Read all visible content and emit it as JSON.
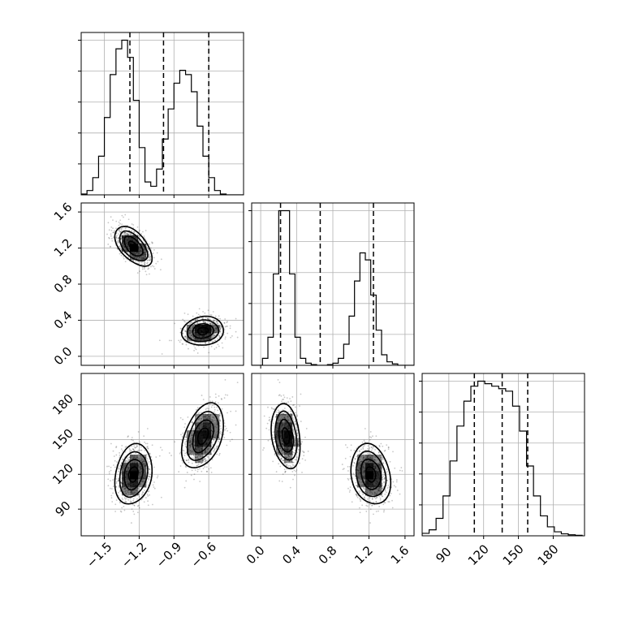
{
  "chart_data": {
    "type": "corner",
    "parameters": [
      {
        "label": "",
        "range": [
          -1.7,
          -0.3
        ],
        "ticks": [
          -1.5,
          -1.2,
          -0.9,
          -0.6
        ],
        "tick_labels": [
          "−1.5",
          "−1.2",
          "−0.9",
          "−0.6"
        ]
      },
      {
        "label": "",
        "range": [
          -0.1,
          1.7
        ],
        "ticks": [
          0.0,
          0.4,
          0.8,
          1.2,
          1.6
        ],
        "tick_labels": [
          "0.0",
          "0.4",
          "0.8",
          "1.2",
          "1.6"
        ]
      },
      {
        "label": "",
        "range": [
          67,
          207
        ],
        "ticks": [
          90,
          120,
          150,
          180
        ],
        "tick_labels": [
          "90",
          "120",
          "150",
          "180"
        ]
      }
    ],
    "modes": [
      {
        "weight": 0.5,
        "mean": [
          -1.25,
          1.22,
          120
        ],
        "sd": [
          0.08,
          0.11,
          13
        ],
        "corr": [
          [
            1,
            -0.55,
            0.2
          ],
          [
            -0.55,
            1,
            -0.2
          ],
          [
            0.2,
            -0.2,
            1
          ]
        ]
      },
      {
        "weight": 0.5,
        "mean": [
          -0.65,
          0.28,
          153
        ],
        "sd": [
          0.09,
          0.08,
          14
        ],
        "corr": [
          [
            1,
            0.1,
            0.4
          ],
          [
            0.1,
            1,
            -0.25
          ],
          [
            0.4,
            -0.25,
            1
          ]
        ]
      }
    ],
    "quantiles": [
      [
        -1.28,
        -0.99,
        -0.6
      ],
      [
        0.22,
        0.66,
        1.25
      ],
      [
        112,
        136,
        158
      ]
    ],
    "histograms": [
      {
        "bins": [
          -1.7,
          -1.65,
          -1.6,
          -1.55,
          -1.5,
          -1.45,
          -1.4,
          -1.35,
          -1.3,
          -1.25,
          -1.2,
          -1.15,
          -1.1,
          -1.05,
          -1.0,
          -0.95,
          -0.9,
          -0.85,
          -0.8,
          -0.75,
          -0.7,
          -0.65,
          -0.6,
          -0.55,
          -0.5,
          -0.45,
          -0.4,
          -0.35,
          -0.3
        ],
        "counts": [
          1,
          5,
          20,
          45,
          90,
          140,
          170,
          180,
          160,
          110,
          55,
          15,
          10,
          30,
          65,
          100,
          130,
          145,
          140,
          120,
          80,
          45,
          20,
          5,
          1,
          0,
          0,
          0
        ]
      },
      {
        "bins": [
          -0.1,
          -0.04,
          0.02,
          0.08,
          0.14,
          0.2,
          0.26,
          0.32,
          0.38,
          0.44,
          0.5,
          0.56,
          0.62,
          0.68,
          0.74,
          0.8,
          0.86,
          0.92,
          0.98,
          1.04,
          1.1,
          1.16,
          1.22,
          1.28,
          1.34,
          1.4,
          1.46,
          1.52,
          1.58,
          1.64,
          1.7
        ],
        "counts": [
          0,
          0,
          10,
          40,
          130,
          220,
          220,
          130,
          40,
          10,
          3,
          1,
          0,
          0,
          1,
          3,
          10,
          30,
          70,
          120,
          160,
          150,
          100,
          50,
          15,
          5,
          2,
          0,
          0,
          0
        ]
      },
      {
        "bins": [
          67,
          73,
          79,
          85,
          91,
          97,
          103,
          109,
          115,
          121,
          127,
          133,
          139,
          145,
          151,
          157,
          163,
          169,
          175,
          181,
          187,
          193,
          199,
          205
        ],
        "counts": [
          5,
          12,
          35,
          80,
          150,
          220,
          270,
          300,
          310,
          305,
          300,
          295,
          290,
          260,
          210,
          140,
          80,
          40,
          18,
          8,
          4,
          2,
          1
        ]
      }
    ],
    "grid": true,
    "contour_levels": 4
  }
}
